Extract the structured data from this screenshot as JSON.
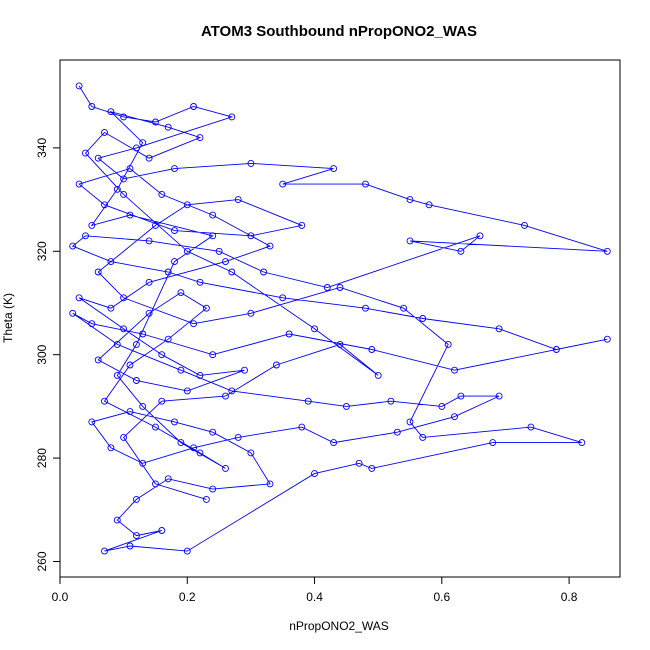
{
  "chart_data": {
    "type": "scatter",
    "title": "ATOM3 Southbound nPropONO2_WAS",
    "xlabel": "nPropONO2_WAS",
    "ylabel": "Theta (K)",
    "xlim": [
      0.0,
      0.88
    ],
    "ylim": [
      257,
      357
    ],
    "xticks": [
      0.0,
      0.2,
      0.4,
      0.6,
      0.8
    ],
    "xtick_labels": [
      "0.0",
      "0.2",
      "0.4",
      "0.6",
      "0.8"
    ],
    "yticks": [
      260,
      280,
      300,
      320,
      340
    ],
    "ytick_labels": [
      "260",
      "280",
      "300",
      "320",
      "340"
    ],
    "series": [
      {
        "name": "nPropONO2_WAS vs Theta",
        "color": "#0000ff",
        "marker": "open-circle",
        "connected": true,
        "points": [
          [
            0.03,
            352
          ],
          [
            0.05,
            348
          ],
          [
            0.1,
            346
          ],
          [
            0.15,
            345
          ],
          [
            0.21,
            348
          ],
          [
            0.27,
            346
          ],
          [
            0.12,
            340
          ],
          [
            0.06,
            338
          ],
          [
            0.1,
            334
          ],
          [
            0.18,
            336
          ],
          [
            0.3,
            337
          ],
          [
            0.43,
            336
          ],
          [
            0.35,
            333
          ],
          [
            0.48,
            333
          ],
          [
            0.55,
            330
          ],
          [
            0.58,
            329
          ],
          [
            0.73,
            325
          ],
          [
            0.86,
            320
          ],
          [
            0.55,
            322
          ],
          [
            0.63,
            320
          ],
          [
            0.66,
            323
          ],
          [
            0.42,
            313
          ],
          [
            0.32,
            316
          ],
          [
            0.25,
            320
          ],
          [
            0.14,
            322
          ],
          [
            0.04,
            323
          ],
          [
            0.02,
            321
          ],
          [
            0.08,
            318
          ],
          [
            0.17,
            316
          ],
          [
            0.22,
            314
          ],
          [
            0.35,
            311
          ],
          [
            0.48,
            309
          ],
          [
            0.57,
            307
          ],
          [
            0.69,
            305
          ],
          [
            0.78,
            301
          ],
          [
            0.86,
            303
          ],
          [
            0.62,
            297
          ],
          [
            0.49,
            301
          ],
          [
            0.36,
            304
          ],
          [
            0.24,
            300
          ],
          [
            0.13,
            304
          ],
          [
            0.05,
            306
          ],
          [
            0.02,
            308
          ],
          [
            0.09,
            302
          ],
          [
            0.19,
            297
          ],
          [
            0.27,
            293
          ],
          [
            0.39,
            291
          ],
          [
            0.45,
            290
          ],
          [
            0.52,
            291
          ],
          [
            0.6,
            290
          ],
          [
            0.63,
            292
          ],
          [
            0.69,
            292
          ],
          [
            0.62,
            288
          ],
          [
            0.53,
            285
          ],
          [
            0.43,
            283
          ],
          [
            0.38,
            286
          ],
          [
            0.28,
            284
          ],
          [
            0.21,
            282
          ],
          [
            0.13,
            279
          ],
          [
            0.08,
            282
          ],
          [
            0.05,
            287
          ],
          [
            0.11,
            289
          ],
          [
            0.18,
            287
          ],
          [
            0.24,
            285
          ],
          [
            0.3,
            281
          ],
          [
            0.33,
            275
          ],
          [
            0.24,
            274
          ],
          [
            0.17,
            276
          ],
          [
            0.12,
            272
          ],
          [
            0.09,
            268
          ],
          [
            0.12,
            265
          ],
          [
            0.16,
            266
          ],
          [
            0.07,
            262
          ],
          [
            0.11,
            263
          ],
          [
            0.2,
            262
          ],
          [
            0.4,
            277
          ],
          [
            0.47,
            279
          ],
          [
            0.49,
            278
          ],
          [
            0.68,
            283
          ],
          [
            0.82,
            283
          ],
          [
            0.74,
            286
          ],
          [
            0.57,
            284
          ],
          [
            0.55,
            287
          ],
          [
            0.61,
            302
          ],
          [
            0.54,
            309
          ],
          [
            0.44,
            313
          ],
          [
            0.3,
            308
          ],
          [
            0.21,
            306
          ],
          [
            0.1,
            311
          ],
          [
            0.06,
            316
          ],
          [
            0.15,
            325
          ],
          [
            0.2,
            329
          ],
          [
            0.28,
            330
          ],
          [
            0.38,
            325
          ],
          [
            0.3,
            323
          ],
          [
            0.18,
            324
          ],
          [
            0.07,
            329
          ],
          [
            0.03,
            333
          ],
          [
            0.11,
            336
          ],
          [
            0.16,
            331
          ],
          [
            0.24,
            327
          ],
          [
            0.33,
            321
          ],
          [
            0.26,
            318
          ],
          [
            0.14,
            314
          ],
          [
            0.08,
            309
          ],
          [
            0.03,
            311
          ],
          [
            0.1,
            305
          ],
          [
            0.16,
            300
          ],
          [
            0.22,
            296
          ],
          [
            0.29,
            297
          ],
          [
            0.2,
            293
          ],
          [
            0.12,
            295
          ],
          [
            0.06,
            299
          ],
          [
            0.14,
            308
          ],
          [
            0.19,
            312
          ],
          [
            0.23,
            309
          ],
          [
            0.17,
            303
          ],
          [
            0.11,
            298
          ],
          [
            0.07,
            291
          ],
          [
            0.15,
            286
          ],
          [
            0.22,
            281
          ],
          [
            0.26,
            278
          ],
          [
            0.19,
            283
          ],
          [
            0.13,
            290
          ],
          [
            0.09,
            296
          ],
          [
            0.12,
            302
          ],
          [
            0.18,
            318
          ],
          [
            0.24,
            323
          ],
          [
            0.11,
            327
          ],
          [
            0.05,
            325
          ],
          [
            0.09,
            332
          ],
          [
            0.13,
            341
          ],
          [
            0.08,
            347
          ],
          [
            0.17,
            344
          ],
          [
            0.22,
            342
          ],
          [
            0.14,
            338
          ],
          [
            0.07,
            343
          ],
          [
            0.04,
            339
          ],
          [
            0.1,
            331
          ],
          [
            0.2,
            320
          ],
          [
            0.27,
            316
          ],
          [
            0.4,
            305
          ],
          [
            0.5,
            296
          ],
          [
            0.44,
            302
          ],
          [
            0.34,
            298
          ],
          [
            0.26,
            292
          ],
          [
            0.16,
            291
          ],
          [
            0.1,
            284
          ],
          [
            0.15,
            275
          ],
          [
            0.23,
            272
          ]
        ]
      }
    ]
  }
}
